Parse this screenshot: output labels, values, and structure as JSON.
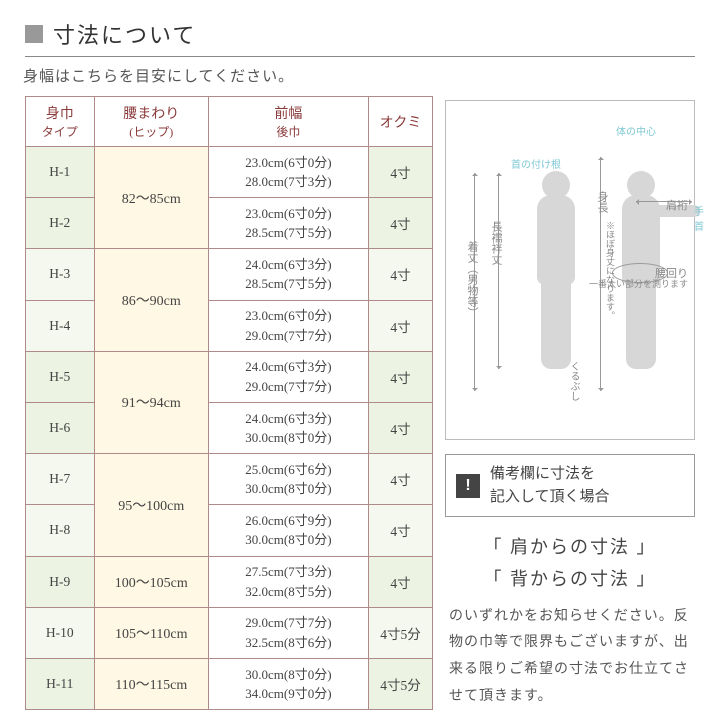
{
  "title": "寸法について",
  "subtitle": "身幅はこちらを目安にしてください。",
  "headers": {
    "c1a": "身巾",
    "c1b": "タイプ",
    "c2a": "腰まわり",
    "c2b": "(ヒップ)",
    "c3a": "前幅",
    "c3b": "後巾",
    "c4": "オクミ"
  },
  "rows": [
    {
      "t": "H-1",
      "h": "82～85cm",
      "m1": "23.0cm(6寸0分)",
      "m2": "28.0cm(7寸3分)",
      "o": "4寸",
      "hr": 2,
      "lt": 0
    },
    {
      "t": "H-2",
      "m1": "23.0cm(6寸0分)",
      "m2": "28.5cm(7寸5分)",
      "o": "4寸",
      "lt": 0
    },
    {
      "t": "H-3",
      "h": "86～90cm",
      "m1": "24.0cm(6寸3分)",
      "m2": "28.5cm(7寸5分)",
      "o": "4寸",
      "hr": 2,
      "lt": 1
    },
    {
      "t": "H-4",
      "m1": "23.0cm(6寸0分)",
      "m2": "29.0cm(7寸7分)",
      "o": "4寸",
      "lt": 1
    },
    {
      "t": "H-5",
      "h": "91～94cm",
      "m1": "24.0cm(6寸3分)",
      "m2": "29.0cm(7寸7分)",
      "o": "4寸",
      "hr": 2,
      "lt": 0
    },
    {
      "t": "H-6",
      "m1": "24.0cm(6寸3分)",
      "m2": "30.0cm(8寸0分)",
      "o": "4寸",
      "lt": 0
    },
    {
      "t": "H-7",
      "h": "95～100cm",
      "m1": "25.0cm(6寸6分)",
      "m2": "30.0cm(8寸0分)",
      "o": "4寸",
      "hr": 2,
      "lt": 1
    },
    {
      "t": "H-8",
      "m1": "26.0cm(6寸9分)",
      "m2": "30.0cm(8寸0分)",
      "o": "4寸",
      "lt": 1
    },
    {
      "t": "H-9",
      "h": "100～105cm",
      "m1": "27.5cm(7寸3分)",
      "m2": "32.0cm(8寸5分)",
      "o": "4寸",
      "hr": 1,
      "lt": 0
    },
    {
      "t": "H-10",
      "h": "105～110cm",
      "m1": "29.0cm(7寸7分)",
      "m2": "32.5cm(8寸6分)",
      "o": "4寸5分",
      "hr": 1,
      "lt": 1
    },
    {
      "t": "H-11",
      "h": "110～115cm",
      "m1": "30.0cm(8寸0分)",
      "m2": "34.0cm(9寸0分)",
      "o": "4寸5分",
      "hr": 1,
      "lt": 0
    }
  ],
  "diagram": {
    "neck": "首の付け根",
    "center": "体の中心",
    "wrist": "手首",
    "kitake": "着丈（男物等）",
    "juban": "長襦袢丈",
    "shincho": "身長",
    "shincho_note": "※ほぼ身丈になります。",
    "ankle": "くるぶし",
    "kata": "肩裄",
    "koshi": "腰回り",
    "koshi_note": "一番太い部分を測ります"
  },
  "hint": {
    "ex": "!",
    "l1": "備考欄に寸法を",
    "l2": "記入して頂く場合"
  },
  "quotes": {
    "q1": "「 肩からの寸法 」",
    "q2": "「 背からの寸法 」"
  },
  "desc": "のいずれかをお知らせください。反物の巾等で限界もございますが、出来る限りご希望の寸法でお仕立てさせて頂きます。"
}
